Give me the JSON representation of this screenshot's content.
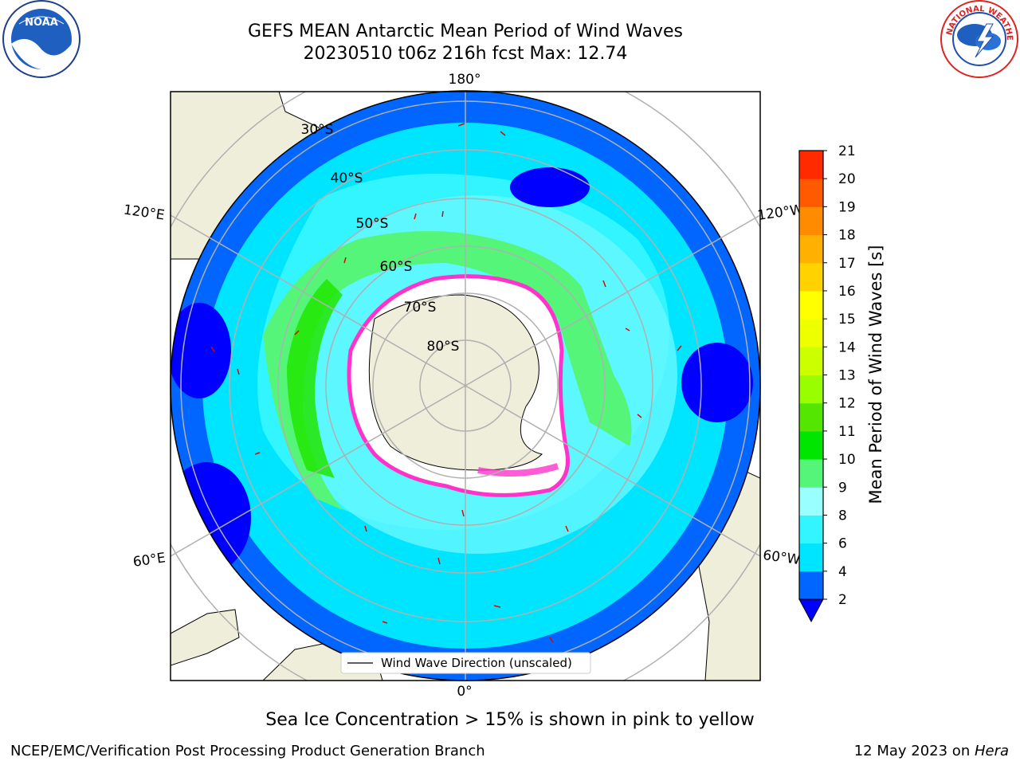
{
  "header": {
    "title_line1": "GEFS MEAN Antarctic Mean Period of Wind Waves",
    "title_line2": "20230510 t06z 216h fcst   Max: 12.74"
  },
  "logos": {
    "left": {
      "icon": "noaa-logo-icon",
      "text": "NOAA"
    },
    "right": {
      "icon": "nws-logo-icon",
      "text": "NATIONAL WEATHER SERVICE"
    }
  },
  "map": {
    "longitude_labels": {
      "top": "180°",
      "bottom": "0°",
      "upper_left": "120°E",
      "upper_right": "120°W",
      "lower_left": "60°E",
      "lower_right": "60°W"
    },
    "latitude_labels": [
      "30°S",
      "40°S",
      "50°S",
      "60°S",
      "70°S",
      "80°S"
    ],
    "legend_label": "Wind Wave Direction (unscaled)",
    "colors": {
      "land": "#efeedb",
      "ice_fill": "#ffffff",
      "ice_edge": "#ff33cc",
      "arrow": "#e60000",
      "grid": "#b0b0b0"
    }
  },
  "colorbar": {
    "label": "Mean Period of Wind Waves [s]",
    "ticks": [
      "2",
      "4",
      "6",
      "8",
      "9",
      "10",
      "11",
      "12",
      "13",
      "14",
      "15",
      "16",
      "17",
      "18",
      "19",
      "20",
      "21"
    ],
    "colors": [
      "#0066ff",
      "#00e5ff",
      "#33f5ff",
      "#99ffff",
      "#55f57a",
      "#00e600",
      "#55e600",
      "#99ff00",
      "#ccff00",
      "#eeff00",
      "#ffff00",
      "#ffd200",
      "#ffb000",
      "#ff8c00",
      "#ff5a00",
      "#ff2a00",
      "#ff0000"
    ],
    "under_color": "#0000ff"
  },
  "annotation": "Sea Ice Concentration > 15% is shown in pink to yellow",
  "footer": {
    "left": "NCEP/EMC/Verification Post Processing Product Generation Branch",
    "right_prefix": "12 May 2023 on ",
    "right_host": "Hera"
  }
}
